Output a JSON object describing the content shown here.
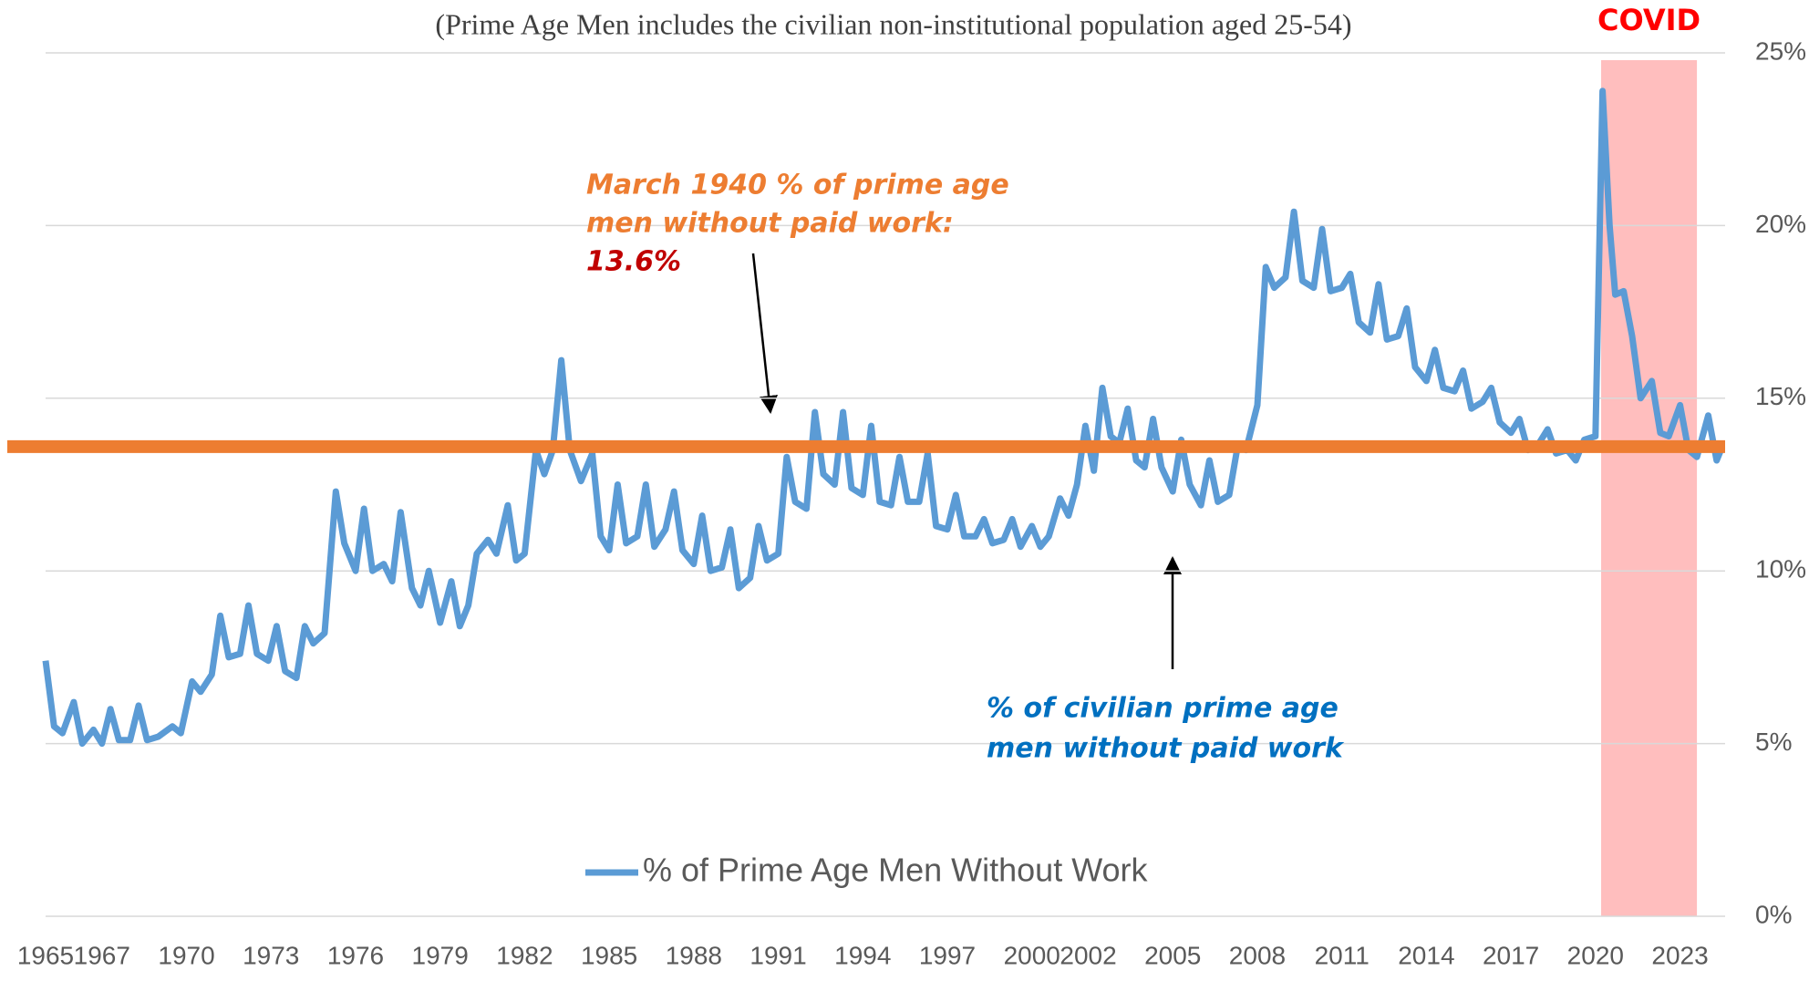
{
  "chart_data": {
    "type": "line",
    "subtitle": "(Prime Age Men includes the civilian non-institutional population aged 25-54)",
    "x": [
      1965,
      1965.3,
      1965.6,
      1966,
      1966.3,
      1966.7,
      1967,
      1967.3,
      1967.6,
      1968,
      1968.3,
      1968.6,
      1969,
      1969.5,
      1969.8,
      1970.2,
      1970.5,
      1970.9,
      1971.2,
      1971.5,
      1971.9,
      1972.2,
      1972.5,
      1972.9,
      1973.2,
      1973.5,
      1973.9,
      1974.2,
      1974.5,
      1974.9,
      1975.3,
      1975.6,
      1976,
      1976.3,
      1976.6,
      1977,
      1977.3,
      1977.6,
      1978,
      1978.3,
      1978.6,
      1979,
      1979.4,
      1979.7,
      1980,
      1980.3,
      1980.7,
      1981,
      1981.4,
      1981.7,
      1982,
      1982.4,
      1982.7,
      1983,
      1983.3,
      1983.6,
      1984,
      1984.4,
      1984.7,
      1985,
      1985.3,
      1985.6,
      1986,
      1986.3,
      1986.6,
      1987,
      1987.3,
      1987.6,
      1988,
      1988.3,
      1988.6,
      1989,
      1989.3,
      1989.6,
      1990,
      1990.3,
      1990.6,
      1991,
      1991.3,
      1991.6,
      1992,
      1992.3,
      1992.6,
      1993,
      1993.3,
      1993.6,
      1994,
      1994.3,
      1994.6,
      1995,
      1995.3,
      1995.6,
      1996,
      1996.3,
      1996.6,
      1997,
      1997.3,
      1997.6,
      1998,
      1998.3,
      1998.6,
      1999,
      1999.3,
      1999.6,
      2000,
      2000.3,
      2000.6,
      2001,
      2001.3,
      2001.6,
      2001.9,
      2002.2,
      2002.5,
      2002.8,
      2003.1,
      2003.4,
      2003.7,
      2004,
      2004.3,
      2004.6,
      2005,
      2005.3,
      2005.6,
      2006,
      2006.3,
      2006.6,
      2007,
      2007.3,
      2007.6,
      2008,
      2008.3,
      2008.6,
      2009,
      2009.3,
      2009.6,
      2010,
      2010.3,
      2010.6,
      2011,
      2011.3,
      2011.6,
      2012,
      2012.3,
      2012.6,
      2013,
      2013.3,
      2013.6,
      2014,
      2014.3,
      2014.6,
      2015,
      2015.3,
      2015.6,
      2016,
      2016.3,
      2016.6,
      2017,
      2017.3,
      2017.6,
      2018,
      2018.3,
      2018.6,
      2019,
      2019.3,
      2019.6,
      2020,
      2020.25,
      2020.5,
      2020.7,
      2021,
      2021.3,
      2021.6,
      2022,
      2022.3,
      2022.6,
      2023,
      2023.3,
      2023.6,
      2024,
      2024.3,
      2024.5
    ],
    "series": [
      {
        "name": "% of Prime Age Men Without Work",
        "color": "#5b9bd5",
        "values": [
          7.4,
          5.5,
          5.3,
          6.2,
          5.0,
          5.4,
          5.0,
          6.0,
          5.1,
          5.1,
          6.1,
          5.1,
          5.2,
          5.5,
          5.3,
          6.8,
          6.5,
          7.0,
          8.7,
          7.5,
          7.6,
          9.0,
          7.6,
          7.4,
          8.4,
          7.1,
          6.9,
          8.4,
          7.9,
          8.2,
          12.3,
          10.8,
          10.0,
          11.8,
          10.0,
          10.2,
          9.7,
          11.7,
          9.5,
          9.0,
          10.0,
          8.5,
          9.7,
          8.4,
          9.0,
          10.5,
          10.9,
          10.5,
          11.9,
          10.3,
          10.5,
          13.5,
          12.8,
          13.5,
          16.1,
          13.5,
          12.6,
          13.4,
          11.0,
          10.6,
          12.5,
          10.8,
          11.0,
          12.5,
          10.7,
          11.2,
          12.3,
          10.6,
          10.2,
          11.6,
          10.0,
          10.1,
          11.2,
          9.5,
          9.8,
          11.3,
          10.3,
          10.5,
          13.3,
          12.0,
          11.8,
          14.6,
          12.8,
          12.5,
          14.6,
          12.4,
          12.2,
          14.2,
          12.0,
          11.9,
          13.3,
          12.0,
          12.0,
          13.4,
          11.3,
          11.2,
          12.2,
          11.0,
          11.0,
          11.5,
          10.8,
          10.9,
          11.5,
          10.7,
          11.3,
          10.7,
          11.0,
          12.1,
          11.6,
          12.5,
          14.2,
          12.9,
          15.3,
          13.9,
          13.7,
          14.7,
          13.2,
          13.0,
          14.4,
          13.0,
          12.3,
          13.8,
          12.5,
          11.9,
          13.2,
          12.0,
          12.2,
          13.6,
          13.5,
          14.8,
          18.8,
          18.2,
          18.5,
          20.4,
          18.4,
          18.2,
          19.9,
          18.1,
          18.2,
          18.6,
          17.2,
          16.9,
          18.3,
          16.7,
          16.8,
          17.6,
          15.9,
          15.5,
          16.4,
          15.3,
          15.2,
          15.8,
          14.7,
          14.9,
          15.3,
          14.3,
          14.0,
          14.4,
          13.5,
          13.7,
          14.1,
          13.4,
          13.5,
          13.2,
          13.8,
          13.9,
          23.9,
          20.0,
          18.0,
          18.1,
          16.8,
          15.0,
          15.5,
          14.0,
          13.9,
          14.8,
          13.5,
          13.3,
          14.5,
          13.2,
          13.6
        ]
      }
    ],
    "xlim": [
      1965,
      2024.6
    ],
    "xticks": [
      1965,
      1967,
      1970,
      1973,
      1976,
      1979,
      1982,
      1985,
      1988,
      1991,
      1994,
      1997,
      2000,
      2002,
      2005,
      2008,
      2011,
      2014,
      2017,
      2020,
      2023
    ],
    "ylim": [
      0,
      25
    ],
    "yticks": [
      {
        "value": 0,
        "label": "0%"
      },
      {
        "value": 5,
        "label": "5%"
      },
      {
        "value": 10,
        "label": "10%"
      },
      {
        "value": 15,
        "label": "15%"
      },
      {
        "value": 20,
        "label": "20%"
      },
      {
        "value": 25,
        "label": "25%"
      }
    ],
    "grid": true,
    "shade": {
      "x": [
        2020.2,
        2023.6
      ],
      "label": "COVID",
      "color": "#ffb3b3"
    },
    "reference_line": {
      "value": 13.6,
      "label": "13.6%",
      "color": "#ed7d31"
    },
    "annotations": [
      "March 1940 % of prime age",
      "men without paid work:",
      "% of  civilian prime age",
      "men without paid work"
    ]
  }
}
